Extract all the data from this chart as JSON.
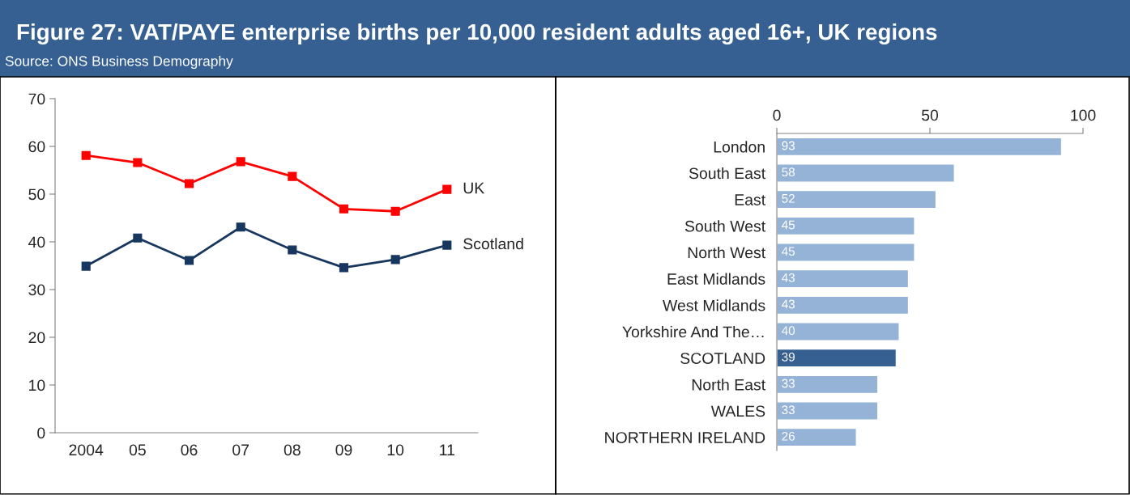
{
  "chart_data": [
    {
      "type": "line",
      "title": "Figure 27: VAT/PAYE enterprise births per 10,000 resident adults aged 16+, UK regions",
      "annotations": [
        "Source: ONS Business Demography"
      ],
      "categories": [
        "2004",
        "05",
        "06",
        "07",
        "08",
        "09",
        "10",
        "11"
      ],
      "series": [
        {
          "name": "UK",
          "color": "#ff0000",
          "values": [
            58.1,
            56.6,
            52.2,
            56.8,
            53.7,
            46.9,
            46.4,
            51.0
          ]
        },
        {
          "name": "Scotland",
          "color": "#17375e",
          "values": [
            34.9,
            40.8,
            36.1,
            43.1,
            38.3,
            34.6,
            36.3,
            39.3
          ]
        }
      ],
      "ylim": [
        0,
        70
      ],
      "yticks": [
        0,
        10,
        20,
        30,
        40,
        50,
        60,
        70
      ],
      "marker": "square",
      "grid": false,
      "legend": false
    },
    {
      "type": "bar",
      "orientation": "horizontal",
      "categories": [
        "London",
        "South East",
        "East",
        "South West",
        "North West",
        "East Midlands",
        "West Midlands",
        "Yorkshire And The…",
        "SCOTLAND",
        "North East",
        "WALES",
        "NORTHERN IRELAND"
      ],
      "values": [
        93,
        58,
        52,
        45,
        45,
        43,
        43,
        40,
        39,
        33,
        33,
        26
      ],
      "colors": [
        "#95b3d7",
        "#95b3d7",
        "#95b3d7",
        "#95b3d7",
        "#95b3d7",
        "#95b3d7",
        "#95b3d7",
        "#95b3d7",
        "#376092",
        "#95b3d7",
        "#95b3d7",
        "#95b3d7"
      ],
      "xlim": [
        0,
        100
      ],
      "xticks": [
        0,
        50,
        100
      ],
      "data_labels": true,
      "grid": false
    }
  ]
}
